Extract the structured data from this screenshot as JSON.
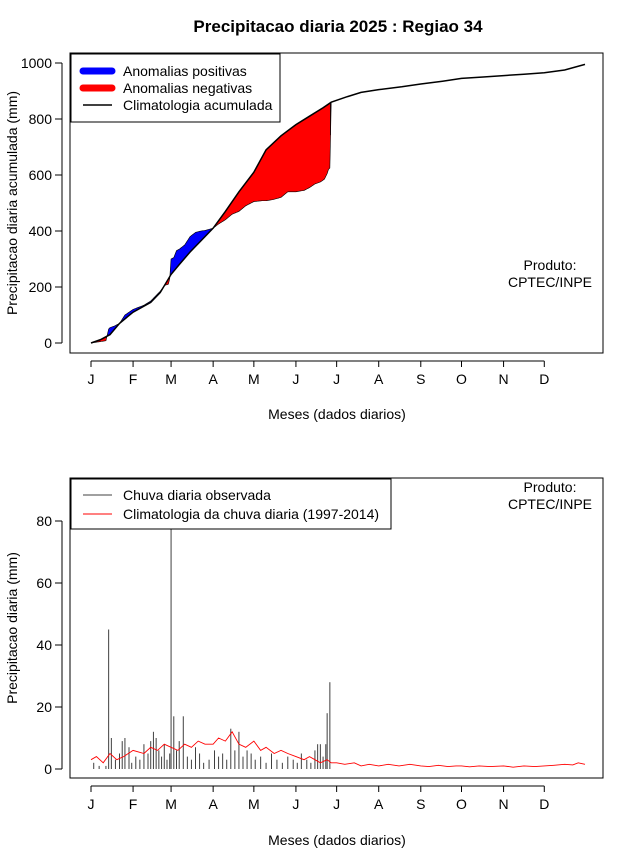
{
  "chart_data": [
    {
      "type": "area",
      "title": "Precipitacao diaria 2025 : Regiao 34",
      "xlabel": "Meses (dados diarios)",
      "ylabel": "Precipitacao diaria acumulada (mm)",
      "xlim": [
        1,
        365
      ],
      "ylim": [
        0,
        1000
      ],
      "yticks": [
        0,
        200,
        400,
        600,
        800,
        1000
      ],
      "month_labels": [
        "J",
        "F",
        "M",
        "A",
        "M",
        "J",
        "J",
        "A",
        "S",
        "O",
        "N",
        "D"
      ],
      "month_start_days": [
        1,
        32,
        60,
        91,
        121,
        152,
        182,
        213,
        244,
        274,
        305,
        335
      ],
      "legend": {
        "position": "top-left",
        "entries": [
          {
            "label": "Anomalias positivas",
            "color": "#0000ff"
          },
          {
            "label": "Anomalias negativas",
            "color": "#ff0000"
          },
          {
            "label": "Climatologia acumulada",
            "color": "#000000"
          }
        ]
      },
      "annotation": [
        "Produto:",
        "CPTEC/INPE"
      ],
      "series": [
        {
          "name": "Climatologia acumulada",
          "x": [
            1,
            8,
            15,
            22,
            32,
            45,
            52,
            60,
            66,
            74,
            85,
            91,
            100,
            110,
            121,
            130,
            141,
            152,
            162,
            172,
            178,
            190,
            200,
            213,
            230,
            244,
            260,
            274,
            290,
            305,
            320,
            335,
            350,
            365
          ],
          "values": [
            0,
            12,
            30,
            70,
            110,
            145,
            180,
            245,
            280,
            325,
            380,
            410,
            470,
            540,
            610,
            690,
            740,
            780,
            810,
            840,
            860,
            880,
            895,
            905,
            915,
            925,
            935,
            945,
            950,
            955,
            960,
            965,
            975,
            995
          ]
        },
        {
          "name": "observed",
          "x": [
            1,
            8,
            12,
            14,
            15,
            18,
            22,
            26,
            32,
            40,
            45,
            50,
            52,
            55,
            58,
            59,
            60,
            62,
            64,
            66,
            70,
            74,
            78,
            82,
            85,
            91,
            95,
            100,
            105,
            110,
            115,
            121,
            127,
            130,
            135,
            141,
            146,
            152,
            158,
            162,
            166,
            170,
            173,
            175,
            176,
            177,
            178
          ],
          "values": [
            0,
            5,
            8,
            50,
            55,
            60,
            70,
            100,
            120,
            135,
            150,
            175,
            185,
            205,
            210,
            230,
            300,
            305,
            330,
            335,
            350,
            380,
            395,
            400,
            402,
            410,
            425,
            440,
            460,
            470,
            490,
            505,
            508,
            508,
            512,
            520,
            540,
            540,
            545,
            555,
            568,
            575,
            585,
            605,
            620,
            625,
            860
          ]
        }
      ]
    },
    {
      "type": "line",
      "xlabel": "Meses (dados diarios)",
      "ylabel": "Precipitacao diaria (mm)",
      "xlim": [
        1,
        365
      ],
      "ylim": [
        0,
        80
      ],
      "yticks": [
        0,
        20,
        40,
        60,
        80
      ],
      "month_labels": [
        "J",
        "F",
        "M",
        "A",
        "M",
        "J",
        "J",
        "A",
        "S",
        "O",
        "N",
        "D"
      ],
      "month_start_days": [
        1,
        32,
        60,
        91,
        121,
        152,
        182,
        213,
        244,
        274,
        305,
        335
      ],
      "legend": {
        "position": "top-left",
        "entries": [
          {
            "label": "Chuva diaria observada",
            "color": "#404040"
          },
          {
            "label": "Climatologia da chuva diaria (1997-2014)",
            "color": "#ff0000"
          }
        ]
      },
      "annotation": [
        "Produto:",
        "CPTEC/INPE"
      ],
      "observed_bars": {
        "x": [
          3,
          7,
          12,
          14,
          16,
          19,
          22,
          24,
          26,
          29,
          31,
          34,
          37,
          40,
          43,
          45,
          47,
          49,
          51,
          53,
          55,
          57,
          59,
          60,
          62,
          64,
          66,
          69,
          72,
          75,
          78,
          81,
          84,
          88,
          92,
          95,
          98,
          101,
          104,
          107,
          110,
          113,
          116,
          119,
          122,
          126,
          130,
          134,
          138,
          142,
          146,
          150,
          153,
          156,
          160,
          163,
          166,
          168,
          170,
          172,
          174,
          175,
          177
        ],
        "values": [
          2,
          1,
          1,
          45,
          10,
          3,
          5,
          9,
          10,
          7,
          2,
          4,
          3,
          8,
          5,
          9,
          12,
          10,
          6,
          4,
          8,
          3,
          5,
          78,
          17,
          6,
          9,
          17,
          4,
          3,
          7,
          5,
          2,
          3,
          6,
          4,
          5,
          3,
          13,
          6,
          12,
          4,
          6,
          5,
          3,
          4,
          2,
          5,
          3,
          2,
          4,
          3,
          2,
          5,
          3,
          2,
          6,
          8,
          8,
          4,
          8,
          18,
          28
        ]
      },
      "climatology_series": {
        "name": "Climatologia da chuva diaria (1997-2014)",
        "x": [
          1,
          5,
          10,
          15,
          20,
          25,
          32,
          40,
          45,
          50,
          55,
          60,
          65,
          70,
          75,
          80,
          85,
          91,
          95,
          100,
          105,
          110,
          115,
          121,
          126,
          130,
          136,
          141,
          146,
          152,
          158,
          162,
          166,
          170,
          175,
          178,
          182,
          188,
          195,
          200,
          206,
          213,
          220,
          228,
          236,
          244,
          250,
          257,
          264,
          270,
          274,
          280,
          287,
          295,
          305,
          312,
          320,
          328,
          335,
          342,
          350,
          356,
          360,
          365
        ],
        "values": [
          3,
          4,
          2,
          5,
          3,
          4,
          6,
          5,
          7,
          6,
          8,
          7,
          6,
          8,
          7,
          9,
          8,
          8,
          10,
          9,
          12,
          8,
          7,
          9,
          6,
          7,
          5,
          6,
          5,
          4,
          3,
          4,
          3,
          2,
          3,
          2,
          2,
          1.5,
          2,
          1,
          1.5,
          1,
          1.5,
          1,
          1.5,
          1,
          0.8,
          1.2,
          0.8,
          1,
          1,
          0.7,
          1,
          0.8,
          1,
          0.6,
          1,
          0.8,
          1,
          1.2,
          1.5,
          1.3,
          2,
          1.5
        ]
      }
    }
  ]
}
